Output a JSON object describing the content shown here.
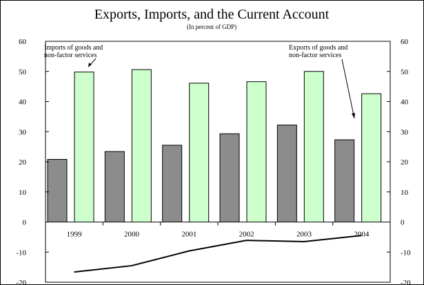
{
  "chart_data": {
    "type": "bar",
    "title": "Exports, Imports, and the Current Account",
    "subtitle": "(In percent of GDP)",
    "categories": [
      "1999",
      "2000",
      "2001",
      "2002",
      "2003",
      "2004"
    ],
    "ylim": [
      -20,
      60
    ],
    "yticks": [
      "60",
      "50",
      "40",
      "30",
      "20",
      "10",
      "0",
      "-10",
      "-20"
    ],
    "series": [
      {
        "name": "Exports of goods and non-factor services",
        "type": "bar",
        "color": "#8c8c8c",
        "values": [
          20.8,
          23.4,
          25.5,
          29.3,
          32.2,
          27.3
        ]
      },
      {
        "name": "Imports of goods and non-factor services",
        "type": "bar",
        "color": "#ccffcc",
        "values": [
          49.8,
          50.6,
          46.1,
          46.6,
          50.0,
          42.6
        ]
      },
      {
        "name": "",
        "type": "line",
        "color": "#000000",
        "values": [
          -16.6,
          -14.5,
          -9.6,
          -6.1,
          -6.5,
          -4.5
        ]
      }
    ],
    "annotations": [
      {
        "id": "imports",
        "lines": [
          "Imports of goods and",
          "non-factor services"
        ]
      },
      {
        "id": "exports",
        "lines": [
          "Exports of goods and",
          "non-factor services"
        ]
      }
    ],
    "grid": false,
    "right_axis": true
  }
}
